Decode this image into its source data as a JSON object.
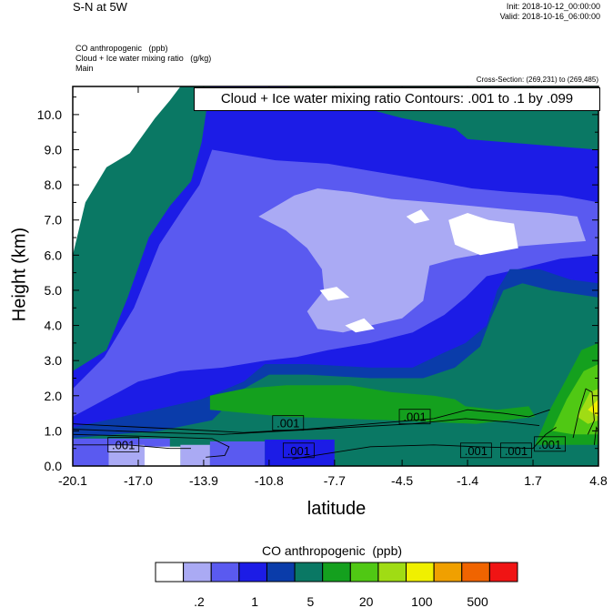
{
  "header": {
    "title": "S-N at 5W",
    "init": "Init: 2018-10-12_00:00:00",
    "valid": "Valid: 2018-10-16_06:00:00",
    "field1": "CO anthropogenic   (ppb)",
    "field2": "Cloud + Ice water mixing ratio   (g/kg)",
    "field3": "Main",
    "cross_section": "Cross-Section: (269,231) to (269,485)",
    "contour_note": "Cloud + Ice water mixing ratio Contours: .001 to .1 by .099"
  },
  "chart_data": {
    "type": "heatmap",
    "xlabel": "latitude",
    "ylabel": "Height (km)",
    "xlim": [
      -20.1,
      4.8
    ],
    "ylim": [
      0.0,
      10.8
    ],
    "x_ticks": [
      -20.1,
      -17.0,
      -13.9,
      -10.8,
      -7.7,
      -4.5,
      -1.4,
      1.7,
      4.8
    ],
    "x_tick_labels": [
      "-20.1",
      "-17.0",
      "-13.9",
      "-10.8",
      "-7.7",
      "-4.5",
      "-1.4",
      "1.7",
      "4.8"
    ],
    "y_ticks": [
      0.0,
      1.0,
      2.0,
      3.0,
      4.0,
      5.0,
      6.0,
      7.0,
      8.0,
      9.0,
      10.0
    ],
    "y_tick_labels": [
      "0.0",
      "1.0",
      "2.0",
      "3.0",
      "4.0",
      "5.0",
      "6.0",
      "7.0",
      "8.0",
      "9.0",
      "10.0"
    ],
    "colorbar": {
      "title": "CO anthropogenic  (ppb)",
      "colors": [
        "#ffffff",
        "#aaaaf4",
        "#5a5af0",
        "#1c1ce6",
        "#0a3caa",
        "#0a7864",
        "#14a01e",
        "#50c814",
        "#a0dc14",
        "#f0f000",
        "#f0a000",
        "#f06400",
        "#f01414"
      ],
      "labels": [
        {
          "text": ".2",
          "index": 2
        },
        {
          "text": "1",
          "index": 4
        },
        {
          "text": "5",
          "index": 6
        },
        {
          "text": "20",
          "index": 8
        },
        {
          "text": "100",
          "index": 10
        },
        {
          "text": "500",
          "index": 12
        }
      ]
    },
    "contour_labels": [
      {
        "text": ".001",
        "x": -17.7,
        "y": 0.58
      },
      {
        "text": ".001",
        "x": -9.9,
        "y": 1.2
      },
      {
        "text": ".001",
        "x": -9.4,
        "y": 0.42
      },
      {
        "text": ".001",
        "x": -3.9,
        "y": 1.38
      },
      {
        "text": ".001",
        "x": -1.0,
        "y": 0.42
      },
      {
        "text": ".001",
        "x": 0.9,
        "y": 0.42
      },
      {
        "text": ".001",
        "x": 2.5,
        "y": 0.6
      }
    ],
    "regions": [
      {
        "level": 3,
        "points": [
          [
            -20.1,
            2.7
          ],
          [
            -18.5,
            3.3
          ],
          [
            -17.5,
            4.8
          ],
          [
            -16.5,
            6.5
          ],
          [
            -15.5,
            7.4
          ],
          [
            -14.5,
            8.1
          ],
          [
            -14,
            9.2
          ],
          [
            -13.6,
            10.8
          ],
          [
            -10,
            10.8
          ],
          [
            -7,
            10.3
          ],
          [
            -4.5,
            9.9
          ],
          [
            -2,
            9.6
          ],
          [
            -1.4,
            9.3
          ],
          [
            4.8,
            9.0
          ],
          [
            4.8,
            0
          ],
          [
            -20.1,
            0
          ]
        ]
      },
      {
        "level": 2,
        "points": [
          [
            -20.1,
            2.2
          ],
          [
            -18.6,
            3.1
          ],
          [
            -17.2,
            4.5
          ],
          [
            -16,
            6.3
          ],
          [
            -14.9,
            7.3
          ],
          [
            -14.1,
            8.0
          ],
          [
            -13.5,
            9.0
          ],
          [
            -10.5,
            8.7
          ],
          [
            -8,
            8.6
          ],
          [
            -6,
            8.4
          ],
          [
            -3,
            8.1
          ],
          [
            -1.2,
            7.9
          ],
          [
            0.5,
            7.8
          ],
          [
            3,
            7.7
          ],
          [
            4.8,
            7.5
          ],
          [
            4.8,
            6.0
          ],
          [
            3,
            5.9
          ],
          [
            1,
            5.6
          ],
          [
            -0.5,
            5.4
          ],
          [
            -1.5,
            4.8
          ],
          [
            -2.5,
            4.3
          ],
          [
            -4,
            3.8
          ],
          [
            -6,
            3.5
          ],
          [
            -8,
            3.3
          ],
          [
            -9.5,
            3.1
          ],
          [
            -11,
            3.0
          ],
          [
            -13,
            2.8
          ],
          [
            -15,
            2.7
          ],
          [
            -17,
            2.4
          ],
          [
            -20.1,
            1.4
          ]
        ]
      },
      {
        "level": 1,
        "points": [
          [
            -11.3,
            7.1
          ],
          [
            -9.6,
            7.7
          ],
          [
            -8.5,
            7.9
          ],
          [
            -7,
            7.8
          ],
          [
            -5,
            7.6
          ],
          [
            -3,
            7.5
          ],
          [
            -1.2,
            7.4
          ],
          [
            0.5,
            7.3
          ],
          [
            2.5,
            7.2
          ],
          [
            3.8,
            7.1
          ],
          [
            4.2,
            6.4
          ],
          [
            2,
            6.3
          ],
          [
            0,
            6.2
          ],
          [
            -1,
            6.0
          ],
          [
            -2,
            5.9
          ],
          [
            -3.2,
            5.7
          ],
          [
            -3.5,
            4.7
          ],
          [
            -4.5,
            4.2
          ],
          [
            -6,
            4.0
          ],
          [
            -7.3,
            3.8
          ],
          [
            -8.5,
            3.9
          ],
          [
            -9,
            4.4
          ],
          [
            -8.2,
            5.0
          ],
          [
            -8.3,
            5.6
          ],
          [
            -9,
            6.2
          ],
          [
            -10,
            6.7
          ]
        ]
      },
      {
        "level": 0,
        "points": [
          [
            -20.1,
            6.0
          ],
          [
            -19.5,
            7.5
          ],
          [
            -18.5,
            8.5
          ],
          [
            -17.4,
            8.9
          ],
          [
            -16.8,
            9.4
          ],
          [
            -16.2,
            9.9
          ],
          [
            -15.5,
            10.4
          ],
          [
            -15,
            10.8
          ],
          [
            -20.1,
            10.8
          ]
        ]
      },
      {
        "level": 0,
        "points": [
          [
            -4.3,
            7.1
          ],
          [
            -3.6,
            7.3
          ],
          [
            -3.2,
            7.0
          ],
          [
            -3.9,
            6.9
          ]
        ]
      },
      {
        "level": 0,
        "points": [
          [
            -2.3,
            7.0
          ],
          [
            -1.4,
            7.2
          ],
          [
            -0.4,
            7.0
          ],
          [
            0.8,
            6.9
          ],
          [
            1,
            6.2
          ],
          [
            -0.8,
            6.0
          ],
          [
            -2,
            6.3
          ]
        ]
      },
      {
        "level": 0,
        "points": [
          [
            -8.4,
            5.0
          ],
          [
            -7.6,
            5.1
          ],
          [
            -7.0,
            4.8
          ],
          [
            -8.0,
            4.7
          ]
        ]
      },
      {
        "level": 0,
        "points": [
          [
            -7.2,
            4.0
          ],
          [
            -6.3,
            4.2
          ],
          [
            -5.8,
            3.9
          ],
          [
            -6.7,
            3.8
          ]
        ]
      },
      {
        "level": 4,
        "points": [
          [
            -20.1,
            1.1
          ],
          [
            -17,
            1.5
          ],
          [
            -14,
            1.9
          ],
          [
            -12,
            2.4
          ],
          [
            -11,
            2.9
          ],
          [
            -9,
            2.9
          ],
          [
            -6,
            2.8
          ],
          [
            -4,
            2.8
          ],
          [
            -2.6,
            3.2
          ],
          [
            -1.5,
            3.5
          ],
          [
            -0.5,
            4.0
          ],
          [
            0,
            5.0
          ],
          [
            0.6,
            5.6
          ],
          [
            2,
            5.6
          ],
          [
            3.5,
            5.3
          ],
          [
            4.8,
            5.2
          ],
          [
            4.8,
            0
          ],
          [
            -20.1,
            0
          ]
        ]
      },
      {
        "level": 5,
        "points": [
          [
            -20.1,
            0.8
          ],
          [
            -16,
            1.0
          ],
          [
            -13.5,
            1.3
          ],
          [
            -12,
            2.2
          ],
          [
            -10.8,
            2.6
          ],
          [
            -9,
            2.6
          ],
          [
            -6,
            2.5
          ],
          [
            -3.5,
            2.5
          ],
          [
            -2,
            2.8
          ],
          [
            -0.8,
            3.4
          ],
          [
            -0.3,
            4.2
          ],
          [
            0.3,
            5.0
          ],
          [
            1.2,
            5.2
          ],
          [
            2.5,
            5.0
          ],
          [
            4.8,
            4.8
          ],
          [
            4.8,
            0
          ],
          [
            -20.1,
            0
          ]
        ]
      },
      {
        "level": 6,
        "points": [
          [
            -13.6,
            2.0
          ],
          [
            -12,
            2.2
          ],
          [
            -10,
            2.3
          ],
          [
            -7,
            2.3
          ],
          [
            -5,
            2.1
          ],
          [
            -3,
            2.0
          ],
          [
            -2,
            1.9
          ],
          [
            -1.5,
            1.7
          ],
          [
            0,
            1.6
          ],
          [
            1.5,
            1.7
          ],
          [
            1.8,
            1.4
          ],
          [
            -1,
            1.2
          ],
          [
            -5,
            1.3
          ],
          [
            -10,
            1.4
          ],
          [
            -13.6,
            1.6
          ]
        ]
      },
      {
        "level": 6,
        "points": [
          [
            1.8,
            0.6
          ],
          [
            2.5,
            1.6
          ],
          [
            3.3,
            2.5
          ],
          [
            4.0,
            3.3
          ],
          [
            4.8,
            3.5
          ],
          [
            4.8,
            0.6
          ]
        ]
      },
      {
        "level": 7,
        "points": [
          [
            2.6,
            1.0
          ],
          [
            3.3,
            1.9
          ],
          [
            4.1,
            2.7
          ],
          [
            4.8,
            2.9
          ],
          [
            4.8,
            0.9
          ],
          [
            3.6,
            0.9
          ]
        ]
      },
      {
        "level": 8,
        "points": [
          [
            3.8,
            1.4
          ],
          [
            4.4,
            2.1
          ],
          [
            4.8,
            2.2
          ],
          [
            4.8,
            1.3
          ],
          [
            4.3,
            1.2
          ]
        ]
      },
      {
        "level": 9,
        "points": [
          [
            4.3,
            1.6
          ],
          [
            4.8,
            1.9
          ],
          [
            4.8,
            1.4
          ]
        ]
      },
      {
        "level": 2,
        "points": [
          [
            -20.1,
            0
          ],
          [
            -15.5,
            0
          ],
          [
            -15.5,
            0.78
          ],
          [
            -20.1,
            0.78
          ]
        ]
      },
      {
        "level": 1,
        "points": [
          [
            -18.4,
            0
          ],
          [
            -16.7,
            0
          ],
          [
            -16.7,
            0.6
          ],
          [
            -18.4,
            0.6
          ]
        ]
      },
      {
        "level": 0,
        "points": [
          [
            -16.7,
            0
          ],
          [
            -15.0,
            0
          ],
          [
            -15.0,
            0.55
          ],
          [
            -16.7,
            0.55
          ]
        ]
      },
      {
        "level": 1,
        "points": [
          [
            -15.0,
            0
          ],
          [
            -13.6,
            0
          ],
          [
            -13.6,
            0.6
          ],
          [
            -15.0,
            0.6
          ]
        ]
      },
      {
        "level": 2,
        "points": [
          [
            -13.6,
            0
          ],
          [
            -11,
            0
          ],
          [
            -11,
            0.7
          ],
          [
            -13.6,
            0.7
          ]
        ]
      },
      {
        "level": 3,
        "points": [
          [
            -11,
            0
          ],
          [
            -7.7,
            0
          ],
          [
            -7.7,
            0.75
          ],
          [
            -11,
            0.75
          ]
        ]
      }
    ],
    "contour_lines": [
      [
        [
          -20.1,
          1.2
        ],
        [
          -15,
          1.05
        ],
        [
          -12,
          0.95
        ],
        [
          -9,
          1.05
        ],
        [
          -6,
          1.2
        ],
        [
          -3,
          1.35
        ],
        [
          -1.4,
          1.6
        ],
        [
          0.3,
          1.5
        ],
        [
          1.5,
          1.4
        ],
        [
          2.5,
          1.6
        ]
      ],
      [
        [
          -20.1,
          1.05
        ],
        [
          -16,
          0.95
        ],
        [
          -13,
          0.9
        ],
        [
          -10,
          1.0
        ],
        [
          -7,
          1.1
        ],
        [
          -4,
          1.2
        ],
        [
          -1.5,
          1.35
        ],
        [
          0.5,
          1.25
        ],
        [
          2,
          1.15
        ]
      ],
      [
        [
          -20.1,
          0.9
        ],
        [
          -17,
          0.85
        ],
        [
          -13.5,
          0.78
        ],
        [
          -12.7,
          0.55
        ],
        [
          -12.9,
          0.3
        ],
        [
          -13.8,
          0.25
        ]
      ],
      [
        [
          -20.1,
          0.6
        ],
        [
          -17.5,
          0.6
        ],
        [
          -15.5,
          0.5
        ],
        [
          -14.5,
          0.5
        ]
      ],
      [
        [
          -9.7,
          0.2
        ],
        [
          -6,
          0.55
        ],
        [
          -3,
          0.6
        ],
        [
          -1,
          0.55
        ],
        [
          1.7,
          0.5
        ],
        [
          2.3,
          0.9
        ],
        [
          2.8,
          1.1
        ]
      ],
      [
        [
          3.6,
          0.8
        ],
        [
          3.9,
          1.6
        ],
        [
          4.2,
          2.2
        ],
        [
          4.5,
          2.1
        ],
        [
          4.6,
          1.3
        ],
        [
          4.3,
          0.9
        ]
      ],
      [
        [
          4.6,
          0.6
        ],
        [
          4.7,
          1.1
        ],
        [
          4.8,
          1.0
        ]
      ]
    ]
  }
}
